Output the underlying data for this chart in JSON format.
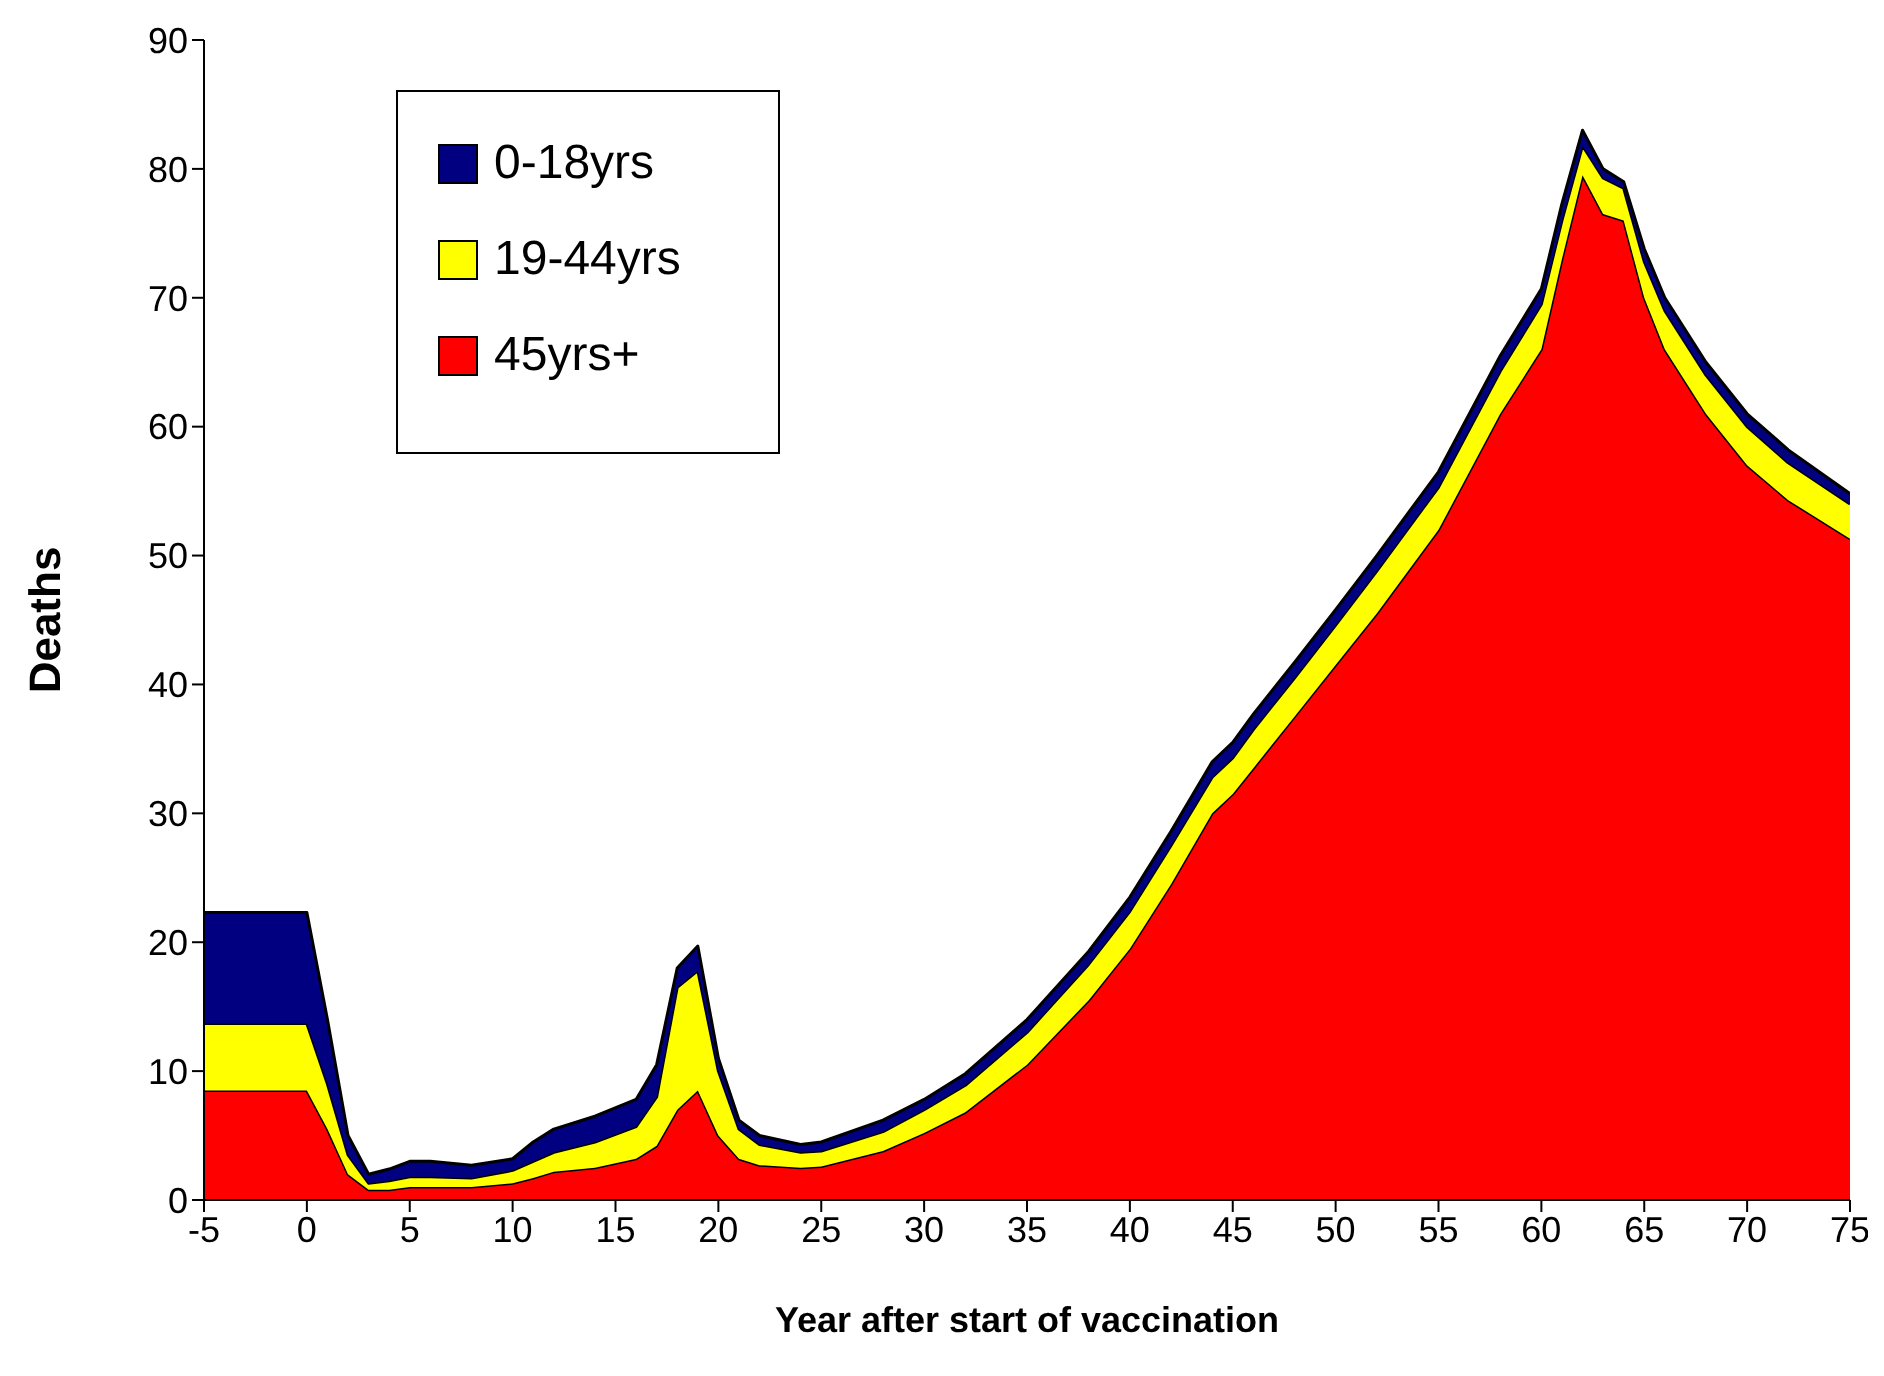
{
  "chart_data": {
    "type": "area",
    "stacked": true,
    "xlabel": "Year after start of vaccination",
    "ylabel": "Deaths",
    "x": [
      -5,
      0,
      1,
      2,
      3,
      4,
      5,
      6,
      8,
      10,
      11,
      12,
      14,
      16,
      17,
      18,
      19,
      20,
      21,
      22,
      24,
      25,
      28,
      30,
      32,
      35,
      38,
      40,
      42,
      44,
      45,
      46,
      48,
      50,
      52,
      55,
      58,
      60,
      61,
      62,
      63,
      64,
      65,
      66,
      68,
      70,
      72,
      75
    ],
    "series": [
      {
        "name": "45yrs+",
        "color": "#ff0000",
        "values": [
          8.5,
          8.5,
          5.5,
          2,
          0.8,
          0.8,
          1,
          1,
          1,
          1.3,
          1.7,
          2.2,
          2.5,
          3.2,
          4.2,
          7,
          8.5,
          5,
          3.2,
          2.7,
          2.5,
          2.6,
          3.8,
          5.2,
          6.8,
          10.5,
          15.5,
          19.5,
          24.5,
          30,
          31.5,
          33.5,
          37.5,
          41.5,
          45.5,
          52,
          61,
          66,
          73,
          79.5,
          76.5,
          76,
          70,
          66,
          61,
          57,
          54.3,
          51.3
        ]
      },
      {
        "name": "19-44yrs",
        "color": "#ffff00",
        "values": [
          5.2,
          5.2,
          3.5,
          1.5,
          0.5,
          0.7,
          0.8,
          0.8,
          0.7,
          1,
          1.3,
          1.5,
          2,
          2.5,
          3.8,
          9.5,
          9.3,
          5,
          2.3,
          1.6,
          1.2,
          1.2,
          1.5,
          1.8,
          2.1,
          2.5,
          2.8,
          2.9,
          3,
          2.8,
          2.8,
          3,
          3,
          3.1,
          3.3,
          3.3,
          3.3,
          3.5,
          3,
          2.3,
          2.8,
          2.5,
          2.8,
          3,
          3,
          3,
          2.9,
          2.7
        ]
      },
      {
        "name": "0-18yrs",
        "color": "#000080",
        "values": [
          8.6,
          8.6,
          5,
          1.5,
          0.7,
          0.9,
          1.2,
          1.2,
          1,
          0.9,
          1.5,
          1.8,
          2,
          2.1,
          2.5,
          1.5,
          1.9,
          1,
          0.7,
          0.7,
          0.6,
          0.7,
          0.9,
          0.8,
          0.9,
          1,
          1,
          1.1,
          1.1,
          1.2,
          1.2,
          1.2,
          1.2,
          1.2,
          1.2,
          1.2,
          1.2,
          1.2,
          1.3,
          1.2,
          0.7,
          0.5,
          1,
          1,
          1,
          1,
          1,
          0.8
        ]
      }
    ],
    "xlim": [
      -5,
      75
    ],
    "xticks": [
      -5,
      0,
      5,
      10,
      15,
      20,
      25,
      30,
      35,
      40,
      45,
      50,
      55,
      60,
      65,
      70,
      75
    ],
    "ylim": [
      0,
      90
    ],
    "yticks": [
      0,
      10,
      20,
      30,
      40,
      50,
      60,
      70,
      80,
      90
    ],
    "grid": false,
    "legend": "top left"
  }
}
